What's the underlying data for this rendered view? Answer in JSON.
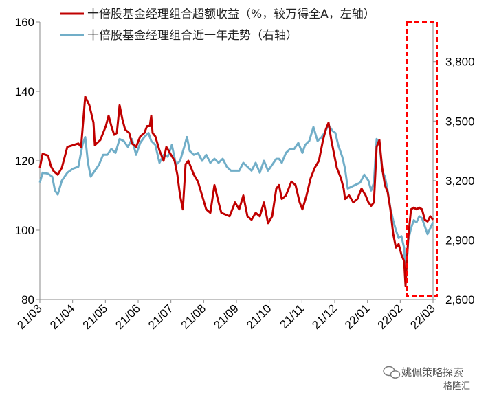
{
  "chart_data": {
    "type": "line",
    "x_labels": [
      "21/03",
      "21/04",
      "21/05",
      "21/06",
      "21/07",
      "21/08",
      "21/09",
      "21/10",
      "21/11",
      "21/12",
      "22/01",
      "22/02",
      "22/03"
    ],
    "y_left": {
      "ticks": [
        "80",
        "100",
        "120",
        "140",
        "160"
      ],
      "range": [
        80,
        160
      ]
    },
    "y_right": {
      "ticks": [
        "2,600",
        "2,900",
        "3,200",
        "3,500",
        "3,800"
      ],
      "range": [
        2600,
        4000
      ]
    },
    "legend_position": "top",
    "highlight": "dashed red box over 22/02 – 22/03",
    "series": [
      {
        "name": "十倍股基金经理组合超额收益（%，较万得全A，左轴）",
        "axis": "left",
        "color": "#c00000",
        "points": [
          [
            0,
            118
          ],
          [
            0.1,
            122
          ],
          [
            0.3,
            121.5
          ],
          [
            0.4,
            118.5
          ],
          [
            0.5,
            117
          ],
          [
            0.65,
            116
          ],
          [
            0.8,
            118
          ],
          [
            1,
            124
          ],
          [
            1.2,
            124.5
          ],
          [
            1.4,
            125
          ],
          [
            1.5,
            124
          ],
          [
            1.65,
            138.5
          ],
          [
            1.8,
            136
          ],
          [
            1.95,
            131
          ],
          [
            2,
            124.5
          ],
          [
            2.2,
            126
          ],
          [
            2.4,
            130
          ],
          [
            2.5,
            133
          ],
          [
            2.6,
            130
          ],
          [
            2.7,
            127.5
          ],
          [
            2.8,
            128
          ],
          [
            2.9,
            136
          ],
          [
            3,
            132
          ],
          [
            3.1,
            129
          ],
          [
            3.25,
            128
          ],
          [
            3.35,
            125
          ],
          [
            3.5,
            124
          ],
          [
            3.65,
            127
          ],
          [
            3.8,
            128
          ],
          [
            3.9,
            130
          ],
          [
            4,
            130
          ],
          [
            4.05,
            133
          ],
          [
            4.1,
            128
          ],
          [
            4.2,
            127
          ],
          [
            4.35,
            123
          ],
          [
            4.5,
            120
          ],
          [
            4.6,
            124
          ],
          [
            4.75,
            122
          ],
          [
            4.9,
            120
          ],
          [
            5,
            116
          ],
          [
            5.1,
            110
          ],
          [
            5.2,
            106
          ],
          [
            5.3,
            119
          ],
          [
            5.4,
            120
          ],
          [
            5.5,
            118
          ],
          [
            5.6,
            116
          ],
          [
            5.75,
            114
          ],
          [
            5.9,
            110
          ],
          [
            6.05,
            106
          ],
          [
            6.2,
            105
          ],
          [
            6.35,
            113
          ],
          [
            6.5,
            108
          ],
          [
            6.6,
            105
          ],
          [
            6.75,
            104.5
          ],
          [
            6.9,
            104
          ],
          [
            7,
            106
          ],
          [
            7.1,
            108
          ],
          [
            7.25,
            106
          ],
          [
            7.4,
            110
          ],
          [
            7.55,
            104
          ],
          [
            7.7,
            103
          ],
          [
            7.85,
            105
          ],
          [
            8,
            104
          ],
          [
            8.15,
            108
          ],
          [
            8.3,
            102
          ],
          [
            8.45,
            104
          ],
          [
            8.6,
            112
          ],
          [
            8.7,
            113
          ],
          [
            8.8,
            109
          ],
          [
            8.95,
            110
          ],
          [
            9.05,
            112
          ],
          [
            9.15,
            114
          ],
          [
            9.3,
            113
          ],
          [
            9.45,
            108
          ],
          [
            9.55,
            106
          ],
          [
            9.7,
            110
          ],
          [
            9.85,
            115
          ],
          [
            10,
            118
          ],
          [
            10.15,
            120
          ],
          [
            10.3,
            126
          ],
          [
            10.4,
            129
          ],
          [
            10.5,
            131
          ],
          [
            10.6,
            126
          ],
          [
            10.7,
            122
          ],
          [
            10.8,
            118
          ],
          [
            10.95,
            115
          ],
          [
            11.05,
            112
          ],
          [
            11.1,
            109
          ],
          [
            11.25,
            110
          ],
          [
            11.4,
            108
          ],
          [
            11.55,
            109
          ],
          [
            11.7,
            112
          ],
          [
            11.85,
            110
          ],
          [
            11.95,
            108
          ],
          [
            12.05,
            107
          ],
          [
            12.15,
            108
          ],
          [
            12.25,
            124
          ],
          [
            12.35,
            126
          ],
          [
            12.45,
            118
          ],
          [
            12.55,
            113
          ],
          [
            12.65,
            111
          ],
          [
            12.75,
            106
          ],
          [
            12.85,
            99
          ],
          [
            12.95,
            95
          ],
          [
            13.05,
            96
          ],
          [
            13.15,
            93
          ],
          [
            13.25,
            91
          ],
          [
            13.3,
            84
          ],
          [
            13.4,
            98
          ],
          [
            13.5,
            106
          ],
          [
            13.6,
            106.5
          ],
          [
            13.7,
            106
          ],
          [
            13.8,
            106.5
          ],
          [
            13.9,
            106
          ],
          [
            14,
            103
          ],
          [
            14.1,
            102.5
          ],
          [
            14.2,
            104
          ],
          [
            14.3,
            103
          ]
        ]
      },
      {
        "name": "十倍股基金经理组合近一年走势（右轴）",
        "axis": "right",
        "color": "#71aec8",
        "points": [
          [
            0,
            3190
          ],
          [
            0.1,
            3240
          ],
          [
            0.3,
            3235
          ],
          [
            0.45,
            3220
          ],
          [
            0.55,
            3150
          ],
          [
            0.65,
            3130
          ],
          [
            0.8,
            3200
          ],
          [
            1,
            3240
          ],
          [
            1.2,
            3260
          ],
          [
            1.4,
            3270
          ],
          [
            1.55,
            3380
          ],
          [
            1.65,
            3420
          ],
          [
            1.75,
            3290
          ],
          [
            1.85,
            3220
          ],
          [
            2,
            3250
          ],
          [
            2.15,
            3280
          ],
          [
            2.3,
            3330
          ],
          [
            2.45,
            3330
          ],
          [
            2.6,
            3360
          ],
          [
            2.75,
            3340
          ],
          [
            2.9,
            3410
          ],
          [
            3.05,
            3400
          ],
          [
            3.2,
            3370
          ],
          [
            3.35,
            3410
          ],
          [
            3.5,
            3330
          ],
          [
            3.65,
            3390
          ],
          [
            3.8,
            3420
          ],
          [
            3.95,
            3440
          ],
          [
            4.05,
            3400
          ],
          [
            4.2,
            3380
          ],
          [
            4.35,
            3290
          ],
          [
            4.5,
            3330
          ],
          [
            4.65,
            3320
          ],
          [
            4.8,
            3380
          ],
          [
            4.95,
            3280
          ],
          [
            5.1,
            3300
          ],
          [
            5.25,
            3370
          ],
          [
            5.35,
            3420
          ],
          [
            5.45,
            3350
          ],
          [
            5.6,
            3330
          ],
          [
            5.75,
            3340
          ],
          [
            5.9,
            3300
          ],
          [
            6.05,
            3330
          ],
          [
            6.2,
            3290
          ],
          [
            6.35,
            3310
          ],
          [
            6.5,
            3290
          ],
          [
            6.65,
            3310
          ],
          [
            6.8,
            3270
          ],
          [
            6.95,
            3250
          ],
          [
            7.1,
            3250
          ],
          [
            7.25,
            3250
          ],
          [
            7.4,
            3290
          ],
          [
            7.55,
            3270
          ],
          [
            7.7,
            3250
          ],
          [
            7.85,
            3290
          ],
          [
            8,
            3240
          ],
          [
            8.15,
            3300
          ],
          [
            8.3,
            3250
          ],
          [
            8.45,
            3280
          ],
          [
            8.6,
            3310
          ],
          [
            8.7,
            3310
          ],
          [
            8.8,
            3290
          ],
          [
            8.95,
            3340
          ],
          [
            9.1,
            3360
          ],
          [
            9.25,
            3360
          ],
          [
            9.4,
            3390
          ],
          [
            9.55,
            3340
          ],
          [
            9.65,
            3380
          ],
          [
            9.8,
            3400
          ],
          [
            9.95,
            3470
          ],
          [
            10.1,
            3400
          ],
          [
            10.25,
            3420
          ],
          [
            10.35,
            3440
          ],
          [
            10.5,
            3480
          ],
          [
            10.65,
            3450
          ],
          [
            10.75,
            3440
          ],
          [
            10.85,
            3380
          ],
          [
            11,
            3320
          ],
          [
            11.1,
            3260
          ],
          [
            11.2,
            3160
          ],
          [
            11.35,
            3170
          ],
          [
            11.5,
            3180
          ],
          [
            11.65,
            3190
          ],
          [
            11.8,
            3230
          ],
          [
            11.95,
            3200
          ],
          [
            12.05,
            3150
          ],
          [
            12.15,
            3190
          ],
          [
            12.25,
            3410
          ],
          [
            12.35,
            3390
          ],
          [
            12.45,
            3250
          ],
          [
            12.55,
            3220
          ],
          [
            12.65,
            3150
          ],
          [
            12.75,
            3060
          ],
          [
            12.85,
            3000
          ],
          [
            12.95,
            2950
          ],
          [
            13.05,
            2910
          ],
          [
            13.15,
            2920
          ],
          [
            13.25,
            2860
          ],
          [
            13.3,
            2700
          ],
          [
            13.4,
            2900
          ],
          [
            13.5,
            2960
          ],
          [
            13.6,
            3000
          ],
          [
            13.7,
            2990
          ],
          [
            13.8,
            3020
          ],
          [
            13.9,
            3010
          ],
          [
            14,
            2970
          ],
          [
            14.1,
            2930
          ],
          [
            14.2,
            2960
          ],
          [
            14.3,
            2990
          ]
        ]
      }
    ]
  },
  "watermark": {
    "brand": "姚佩策略探索",
    "brand_secondary": "格隆汇"
  }
}
